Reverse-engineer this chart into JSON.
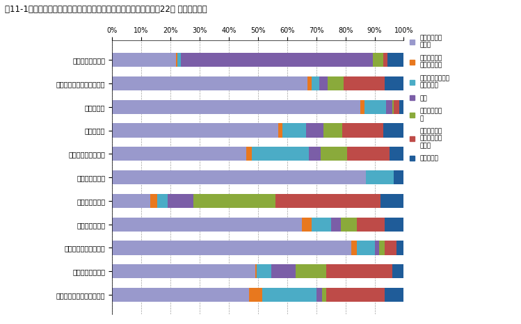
{
  "title": "図11-1　職業大分類別における従業上の地位別の就業者割合（平成22年 宮崎県　男）",
  "categories": [
    "管理的職業従業者",
    "専門的・技術的職業従業者",
    "事務従業者",
    "販売従業者",
    "サービス職業従業者",
    "保安職業従業者",
    "農林漁業従業者",
    "生産工程従業者",
    "輸送・機械運転従業者",
    "建設・採掘従業者",
    "運搬・清掃・包装等従業者"
  ],
  "legend_labels": [
    "正規の職員・\n従業員",
    "労働者派遣事\n業所派遣社員",
    "パート・アルバイ\nト・その他",
    "役員",
    "雇人のある業\n主",
    "雇人のない業\n主（家庭内職\n者含）",
    "家族従業者"
  ],
  "colors": [
    "#9999CC",
    "#E8781E",
    "#4BACC6",
    "#7B5EA7",
    "#8AAA3B",
    "#BE4B48",
    "#1F5C99"
  ],
  "data": [
    [
      22.0,
      0.5,
      1.0,
      66.0,
      3.5,
      1.5,
      5.5
    ],
    [
      67.0,
      1.5,
      2.5,
      3.0,
      5.5,
      14.0,
      6.5
    ],
    [
      85.0,
      1.5,
      7.5,
      2.0,
      0.5,
      2.0,
      1.5
    ],
    [
      57.0,
      1.5,
      8.0,
      6.0,
      6.5,
      14.0,
      7.0
    ],
    [
      46.0,
      2.0,
      19.5,
      4.0,
      9.0,
      14.5,
      5.0
    ],
    [
      87.0,
      0.0,
      9.5,
      0.0,
      0.0,
      0.0,
      3.5
    ],
    [
      13.0,
      2.5,
      3.5,
      9.0,
      28.0,
      36.0,
      8.0
    ],
    [
      65.0,
      3.5,
      6.5,
      3.5,
      5.5,
      9.5,
      6.5
    ],
    [
      82.0,
      2.0,
      6.0,
      1.5,
      2.0,
      4.0,
      2.5
    ],
    [
      49.0,
      0.5,
      5.0,
      8.5,
      10.5,
      22.5,
      4.0
    ],
    [
      47.0,
      4.5,
      18.5,
      2.0,
      1.5,
      20.0,
      6.5
    ]
  ],
  "xlabel_values": [
    0,
    10,
    20,
    30,
    40,
    50,
    60,
    70,
    80,
    90,
    100
  ],
  "xlabel_ticks": [
    "0%",
    "10%",
    "20%",
    "30%",
    "40%",
    "50%",
    "60%",
    "70%",
    "80%",
    "90%",
    "100%"
  ]
}
